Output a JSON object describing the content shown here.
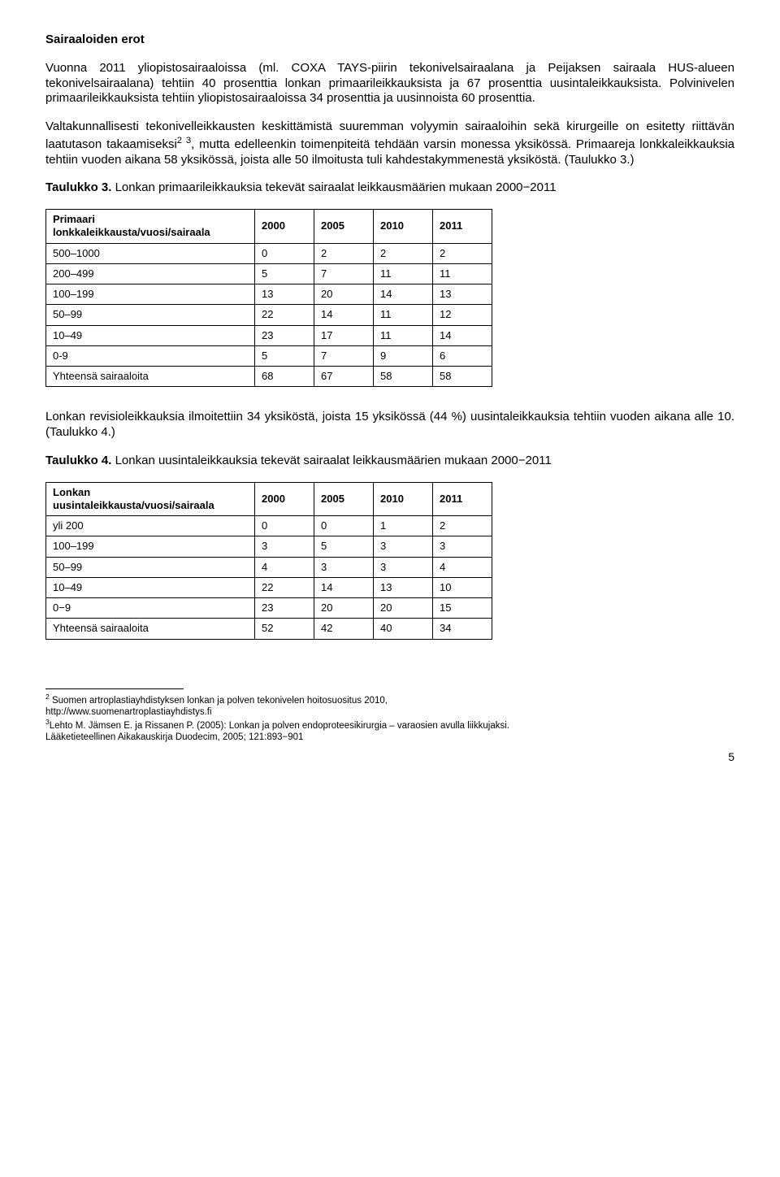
{
  "section_title": "Sairaaloiden erot",
  "para1": "Vuonna 2011 yliopistosairaaloissa (ml. COXA TAYS-piirin tekonivelsairaalana ja Peijaksen sairaala HUS-alueen tekonivelsairaalana) tehtiin 40 prosenttia lonkan primaarileikkauksista ja 67 prosenttia uusintaleikkauksista. Polvinivelen primaarileikkauksista tehtiin yliopistosairaaloissa 34 prosenttia ja uusinnoista 60 prosenttia.",
  "para2_a": "Valtakunnallisesti tekonivelleikkausten keskittämistä suuremman volyymin sairaaloihin sekä kirurgeille on esitetty riittävän laatutason takaamiseksi",
  "para2_sup": "2 3",
  "para2_b": ", mutta edelleenkin toimenpiteitä tehdään varsin monessa yksikössä. Primaareja lonkkaleikkauksia tehtiin vuoden aikana 58 yksikössä, joista alle 50 ilmoitusta tuli kahdestakymmenestä yksiköstä. (Taulukko 3.)",
  "table3_title_bold": "Taulukko 3.",
  "table3_title_rest": " Lonkan primaarileikkauksia tekevät sairaalat leikkausmäärien mukaan 2000−2011",
  "table3": {
    "col0_header": "Primaari lonkkaleikkausta/vuosi/sairaala",
    "years": [
      "2000",
      "2005",
      "2010",
      "2011"
    ],
    "rows": [
      [
        "500–1000",
        "0",
        "2",
        "2",
        "2"
      ],
      [
        "200–499",
        "5",
        "7",
        "11",
        "11"
      ],
      [
        "100–199",
        "13",
        "20",
        "14",
        "13"
      ],
      [
        "50–99",
        "22",
        "14",
        "11",
        "12"
      ],
      [
        "10–49",
        "23",
        "17",
        "11",
        "14"
      ],
      [
        "0-9",
        "5",
        "7",
        "9",
        "6"
      ],
      [
        "Yhteensä sairaaloita",
        "68",
        "67",
        "58",
        "58"
      ]
    ]
  },
  "para3": "Lonkan revisioleikkauksia ilmoitettiin 34 yksiköstä, joista 15 yksikössä (44 %) uusintaleikkauksia tehtiin vuoden aikana alle 10. (Taulukko 4.)",
  "table4_title_bold": "Taulukko 4.",
  "table4_title_rest": " Lonkan uusintaleikkauksia tekevät sairaalat leikkausmäärien mukaan 2000−2011",
  "table4": {
    "col0_header": "Lonkan uusintaleikkausta/vuosi/sairaala",
    "years": [
      "2000",
      "2005",
      "2010",
      "2011"
    ],
    "rows": [
      [
        "yli 200",
        "0",
        "0",
        "1",
        "2"
      ],
      [
        "100–199",
        "3",
        "5",
        "3",
        "3"
      ],
      [
        "50–99",
        "4",
        "3",
        "3",
        "4"
      ],
      [
        "10–49",
        "22",
        "14",
        "13",
        "10"
      ],
      [
        "0−9",
        "23",
        "20",
        "20",
        "15"
      ],
      [
        "Yhteensä sairaaloita",
        "52",
        "42",
        "40",
        "34"
      ]
    ]
  },
  "footnotes": {
    "fn2_sup": "2",
    "fn2_a": " Suomen artroplastiayhdistyksen lonkan ja polven tekonivelen hoitosuositus 2010,",
    "fn2_b": "http://www.suomenartroplastiayhdistys.fi",
    "fn3_sup": "3",
    "fn3_a": "Lehto M. Jämsen E. ja Rissanen P. (2005): Lonkan ja polven endoproteesikirurgia – varaosien avulla liikkujaksi.",
    "fn3_b": "Lääketieteellinen Aikakauskirja Duodecim, 2005; 121:893−901"
  },
  "page_number": "5"
}
